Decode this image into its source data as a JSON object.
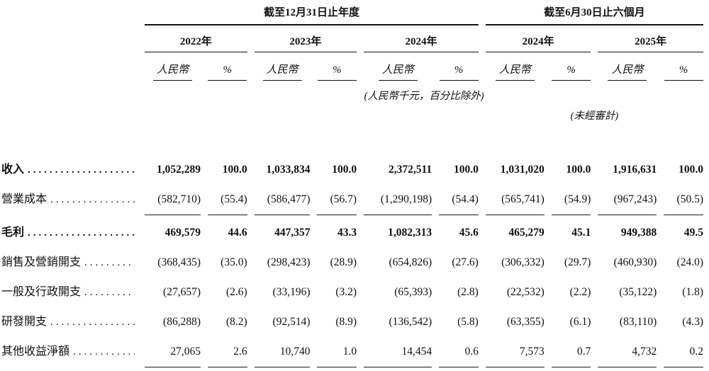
{
  "document": {
    "colors": {
      "background": "#ffffff",
      "text": "#111111",
      "rule": "#1a1a1a"
    },
    "table": {
      "period_groups": [
        {
          "title": "截至12月31日止年度"
        },
        {
          "title": "截至6月30日止六個月"
        }
      ],
      "year_columns": [
        "2022年",
        "2023年",
        "2024年",
        "2024年",
        "2025年"
      ],
      "subheaders": {
        "currency": "人民幣",
        "percent": "%"
      },
      "notes": {
        "units": "(人民幣千元，百分比除外)",
        "unaudited": "(未經審計)"
      },
      "rows": [
        {
          "label": "收入",
          "bold": true,
          "underline": false,
          "values": [
            "1,052,289",
            "100.0",
            "1,033,834",
            "100.0",
            "2,372,511",
            "100.0",
            "1,031,020",
            "100.0",
            "1,916,631",
            "100.0"
          ]
        },
        {
          "label": "營業成本",
          "bold": false,
          "underline": true,
          "values": [
            "(582,710)",
            "(55.4)",
            "(586,477)",
            "(56.7)",
            "(1,290,198)",
            "(54.4)",
            "(565,741)",
            "(54.9)",
            "(967,243)",
            "(50.5)"
          ]
        },
        {
          "label": "毛利",
          "bold": true,
          "underline": false,
          "values": [
            "469,579",
            "44.6",
            "447,357",
            "43.3",
            "1,082,313",
            "45.6",
            "465,279",
            "45.1",
            "949,388",
            "49.5"
          ]
        },
        {
          "label": "銷售及營銷開支",
          "bold": false,
          "underline": false,
          "values": [
            "(368,435)",
            "(35.0)",
            "(298,423)",
            "(28.9)",
            "(654,826)",
            "(27.6)",
            "(306,332)",
            "(29.7)",
            "(460,930)",
            "(24.0)"
          ]
        },
        {
          "label": "一般及行政開支",
          "bold": false,
          "underline": false,
          "values": [
            "(27,657)",
            "(2.6)",
            "(33,196)",
            "(3.2)",
            "(65,393)",
            "(2.8)",
            "(22,532)",
            "(2.2)",
            "(35,122)",
            "(1.8)"
          ]
        },
        {
          "label": "研發開支",
          "bold": false,
          "underline": false,
          "values": [
            "(86,288)",
            "(8.2)",
            "(92,514)",
            "(8.9)",
            "(136,542)",
            "(5.8)",
            "(63,355)",
            "(6.1)",
            "(83,110)",
            "(4.3)"
          ]
        },
        {
          "label": "其他收益淨額",
          "bold": false,
          "underline": true,
          "values": [
            "27,065",
            "2.6",
            "10,740",
            "1.0",
            "14,454",
            "0.6",
            "7,573",
            "0.7",
            "4,732",
            "0.2"
          ]
        }
      ]
    }
  }
}
